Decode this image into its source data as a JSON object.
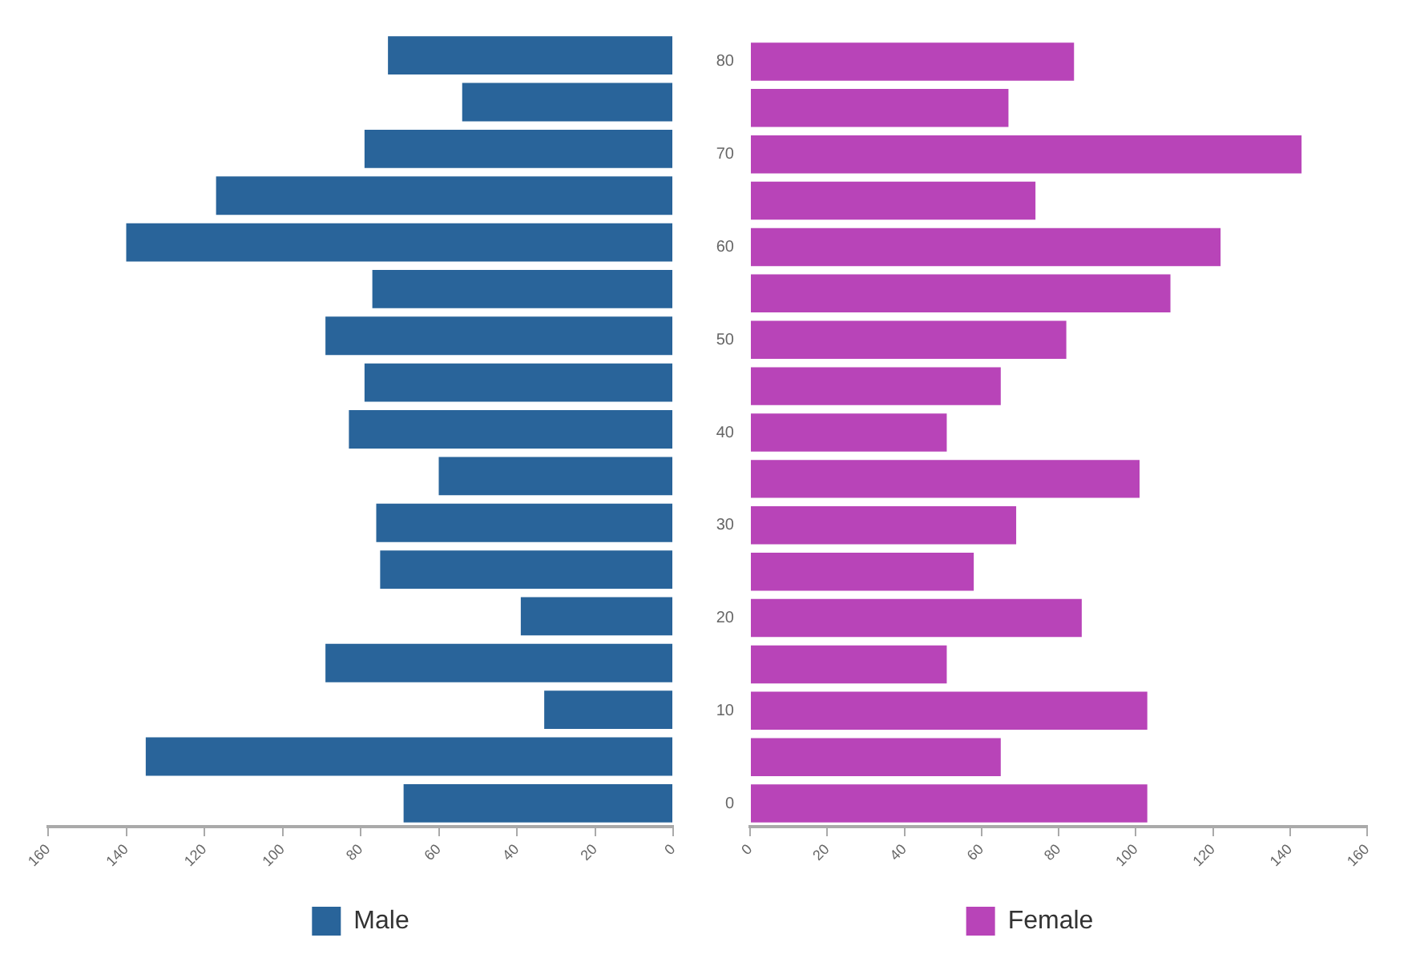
{
  "chart_data": [
    {
      "type": "bar",
      "orientation": "horizontal",
      "categories": [
        "80",
        null,
        "70",
        null,
        "60",
        null,
        "50",
        null,
        "40",
        null,
        "30",
        null,
        "20",
        null,
        "10",
        null,
        "0"
      ],
      "series": [
        {
          "name": "Male",
          "color": "#29649a",
          "values": [
            73,
            54,
            79,
            117,
            140,
            77,
            89,
            79,
            83,
            60,
            76,
            75,
            39,
            89,
            33,
            135,
            69
          ]
        }
      ],
      "xlim": [
        160,
        0
      ],
      "xticks": [
        160,
        140,
        120,
        100,
        80,
        60,
        40,
        20,
        0
      ],
      "tick_labels": "x",
      "grid": false,
      "legend": "bottom"
    },
    {
      "type": "bar",
      "orientation": "horizontal",
      "categories": [
        "80",
        null,
        "70",
        null,
        "60",
        null,
        "50",
        null,
        "40",
        null,
        "30",
        null,
        "20",
        null,
        "10",
        null,
        "0"
      ],
      "series": [
        {
          "name": "Female",
          "color": "#b844b8",
          "values": [
            84,
            67,
            143,
            74,
            122,
            109,
            82,
            65,
            51,
            101,
            69,
            58,
            86,
            51,
            103,
            65,
            103
          ]
        }
      ],
      "xlim": [
        0,
        160
      ],
      "xticks": [
        0,
        20,
        40,
        60,
        80,
        100,
        120,
        140,
        160
      ],
      "grid": false,
      "legend": "bottom"
    }
  ]
}
